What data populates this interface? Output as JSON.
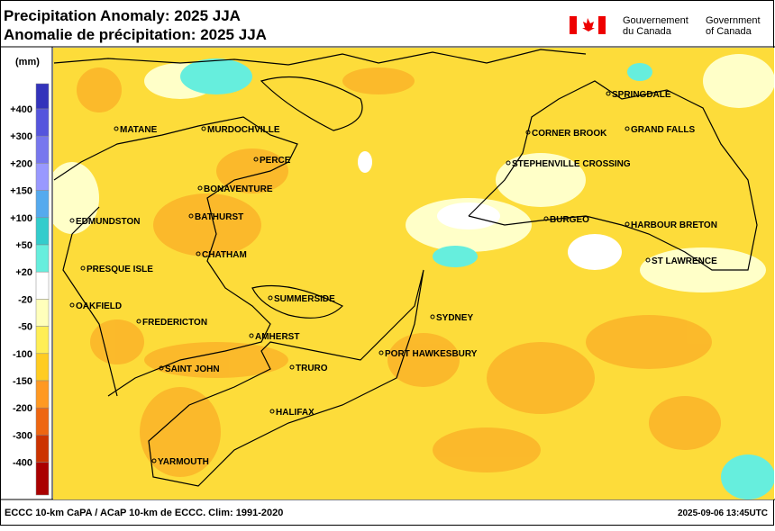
{
  "header": {
    "title": "Precipitation Anomaly: 2025 JJA",
    "subtitle": "Anomalie de précipitation: 2025 JJA",
    "gov_fr": [
      "Gouvernement",
      "du Canada"
    ],
    "gov_en": [
      "Government",
      "of Canada"
    ]
  },
  "legend": {
    "unit": "(mm)",
    "labels": [
      "+400",
      "+300",
      "+200",
      "+150",
      "+100",
      "+50",
      "+20",
      "-20",
      "-50",
      "-100",
      "-150",
      "-200",
      "-300",
      "-400"
    ],
    "colors": [
      "#3333bb",
      "#5555dd",
      "#7777ee",
      "#9999ff",
      "#55aaee",
      "#33cccc",
      "#66eedd",
      "#ffffff",
      "#ffffbb",
      "#ffee55",
      "#ffcc22",
      "#ff9922",
      "#ee6611",
      "#cc3300",
      "#aa0000"
    ]
  },
  "map": {
    "cities": [
      "MATANE",
      "MURDOCHVILLE",
      "PERCE",
      "BONAVENTURE",
      "BATHURST",
      "EDMUNDSTON",
      "CHATHAM",
      "PRESQUE ISLE",
      "OAKFIELD",
      "SUMMERSIDE",
      "FREDERICTON",
      "AMHERST",
      "SAINT JOHN",
      "TRURO",
      "HALIFAX",
      "YARMOUTH",
      "SYDNEY",
      "PORT HAWKESBURY",
      "SPRINGDALE",
      "CORNER BROOK",
      "GRAND FALLS",
      "STEPHENVILLE CROSSING",
      "BURGEO",
      "HARBOUR BRETON",
      "ST LAWRENCE"
    ]
  },
  "footer": {
    "source": "ECCC 10-km CaPA / ACaP 10-km de ECCC. Clim: 1991-2020",
    "timestamp": "2025-09-06 13:45UTC"
  }
}
